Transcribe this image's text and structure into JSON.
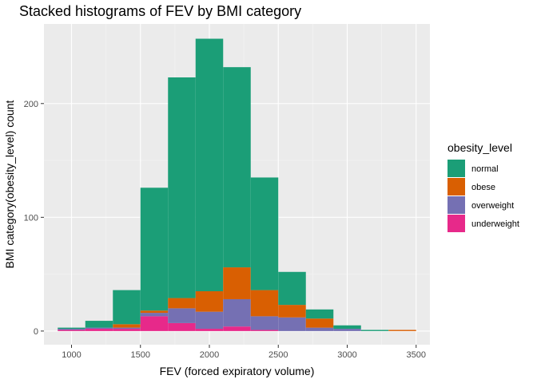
{
  "chart_data": {
    "type": "bar",
    "stacked": true,
    "title": "Stacked histograms of FEV by BMI category",
    "xlabel": "FEV (forced expiratory volume)",
    "ylabel": "BMI category(obesity_level) count",
    "x_bins": [
      [
        900,
        1100
      ],
      [
        1100,
        1300
      ],
      [
        1300,
        1500
      ],
      [
        1500,
        1700
      ],
      [
        1700,
        1900
      ],
      [
        1900,
        2100
      ],
      [
        2100,
        2300
      ],
      [
        2300,
        2500
      ],
      [
        2500,
        2700
      ],
      [
        2700,
        2900
      ],
      [
        2900,
        3100
      ],
      [
        3100,
        3300
      ],
      [
        3300,
        3500
      ]
    ],
    "xlim": [
      800,
      3600
    ],
    "ylim": [
      -12,
      270
    ],
    "x_ticks": [
      1000,
      1500,
      2000,
      2500,
      3000,
      3500
    ],
    "y_ticks": [
      0,
      100,
      200
    ],
    "grid": true,
    "legend_position": "right",
    "legend_title": "obesity_level",
    "series": [
      {
        "name": "normal",
        "color": "#1B9E77",
        "values": [
          1,
          6,
          30,
          108,
          194,
          222,
          176,
          99,
          29,
          8,
          3,
          1,
          0
        ]
      },
      {
        "name": "obese",
        "color": "#D95F02",
        "values": [
          0,
          0,
          3,
          2,
          9,
          18,
          28,
          23,
          11,
          8,
          0,
          0,
          1
        ]
      },
      {
        "name": "overweight",
        "color": "#7570B3",
        "values": [
          1,
          1,
          1,
          3,
          13,
          15,
          24,
          12,
          12,
          3,
          2,
          0,
          0
        ]
      },
      {
        "name": "underweight",
        "color": "#E7298A",
        "values": [
          1,
          2,
          2,
          13,
          7,
          2,
          4,
          1,
          0,
          0,
          0,
          0,
          0
        ]
      }
    ]
  }
}
